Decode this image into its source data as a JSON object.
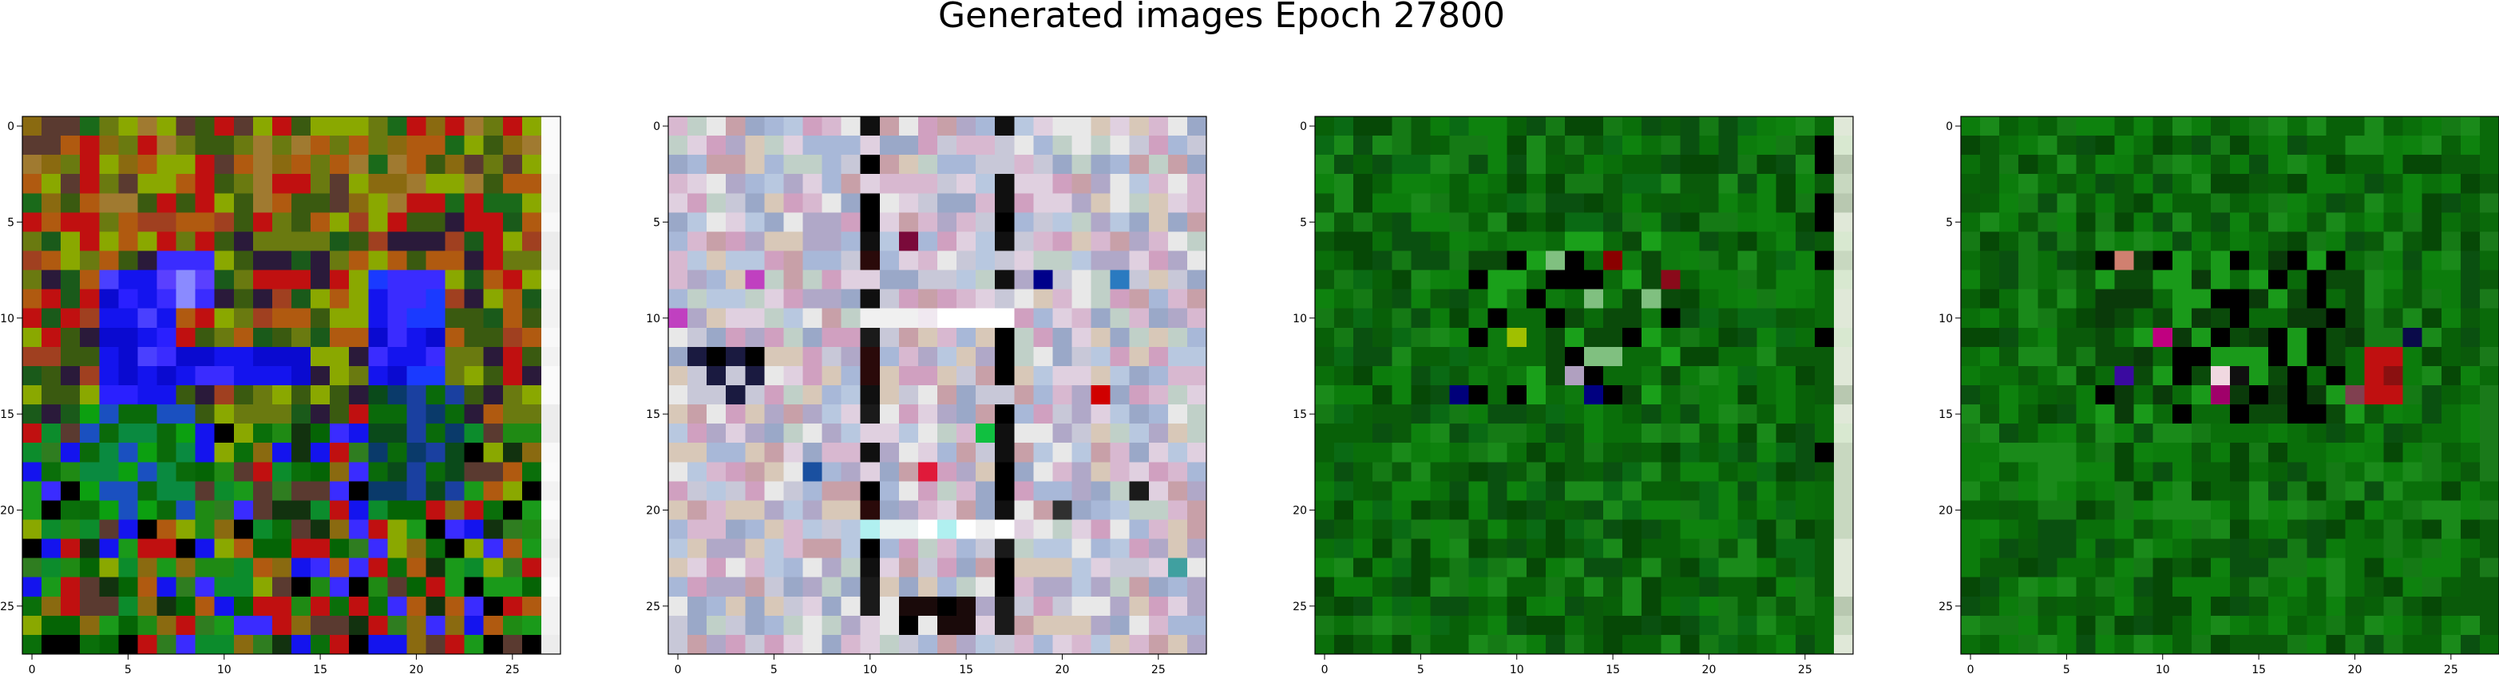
{
  "title": "Generated images Epoch 27800",
  "chart_data": [
    {
      "type": "heatmap",
      "subtype": "rgb-image",
      "grid": [
        28,
        28
      ],
      "xlim": [
        -0.5,
        27.5
      ],
      "ylim": [
        27.5,
        -0.5
      ],
      "x_ticks": [
        0,
        5,
        10,
        15,
        20,
        25
      ],
      "y_ticks": [
        0,
        5,
        10,
        15,
        20,
        25
      ],
      "grid_lines": false,
      "palette": [
        "#0a6f0a",
        "#1f8a14",
        "#056405",
        "#2f7d20",
        "#8a6a10",
        "#b05a10",
        "#1414ee",
        "#3a2cff",
        "#000000",
        "#c01010",
        "#8aa800",
        "#5a3a30",
        "#0c8c2c",
        "#1a9a1a",
        "#12320f"
      ],
      "features": [
        {
          "kind": "rect",
          "rows": [
            0,
            7
          ],
          "cols": [
            0,
            27
          ],
          "palette": [
            "#8a6a10",
            "#b05a10",
            "#6a7a10",
            "#3a5a10",
            "#a07a30",
            "#5a3a30",
            "#c01010",
            "#1a6a1a",
            "#8aa800"
          ]
        },
        {
          "kind": "rect",
          "rows": [
            5,
            15
          ],
          "cols": [
            0,
            27
          ],
          "palette": [
            "#b05a10",
            "#6a7a10",
            "#2a1a3a",
            "#c01010",
            "#8aa800",
            "#3a5a10",
            "#a04020",
            "#1a5a1a"
          ]
        },
        {
          "kind": "rect",
          "rows": [
            8,
            14
          ],
          "cols": [
            4,
            7
          ],
          "palette": [
            "#1414ee",
            "#2a20ff",
            "#0a0ad0",
            "#4a40ff"
          ]
        },
        {
          "kind": "rect",
          "rows": [
            12,
            13
          ],
          "cols": [
            7,
            14
          ],
          "palette": [
            "#1414ee",
            "#0a0ad0",
            "#3a2cff"
          ]
        },
        {
          "kind": "rect",
          "rows": [
            8,
            14
          ],
          "cols": [
            18,
            21
          ],
          "palette": [
            "#1414ee",
            "#0a0ad0",
            "#3a2cff",
            "#1a3aff"
          ]
        },
        {
          "kind": "rect",
          "rows": [
            7,
            9
          ],
          "cols": [
            7,
            9
          ],
          "palette": [
            "#3a2cff",
            "#8a8aff",
            "#5a40ff"
          ]
        },
        {
          "kind": "rect",
          "rows": [
            15,
            20
          ],
          "cols": [
            3,
            8
          ],
          "palette": [
            "#0ca010",
            "#0a8a40",
            "#1a50c0",
            "#0a6a0a"
          ]
        },
        {
          "kind": "rect",
          "rows": [
            14,
            19
          ],
          "cols": [
            18,
            22
          ],
          "palette": [
            "#0a4a1a",
            "#1a40a0",
            "#0a6a0a",
            "#0a3a6a"
          ]
        },
        {
          "kind": "col",
          "cols": [
            27,
            27
          ],
          "palette": [
            "#f2f2f2",
            "#f8f8f8",
            "#ececec",
            "#fafafa"
          ]
        },
        {
          "kind": "cell",
          "r": 27,
          "c": 26,
          "palette": [
            "#000000"
          ]
        }
      ]
    },
    {
      "type": "heatmap",
      "subtype": "rgb-image",
      "grid": [
        28,
        28
      ],
      "xlim": [
        -0.5,
        27.5
      ],
      "ylim": [
        27.5,
        -0.5
      ],
      "x_ticks": [
        0,
        5,
        10,
        15,
        20,
        25
      ],
      "y_ticks": [
        0,
        5,
        10,
        15,
        20,
        25
      ],
      "grid_lines": false,
      "palette": [
        "#c8c8d8",
        "#d8b8d0",
        "#a8b8d8",
        "#c0d0c8",
        "#e0d0e0",
        "#b0a8c8",
        "#d0a0c0",
        "#9aa8c8",
        "#e8e8e8",
        "#c8a0a8",
        "#b8c8e0",
        "#d8c8b8"
      ],
      "features": [
        {
          "kind": "col",
          "cols": [
            10,
            10
          ],
          "palette": [
            "#000000",
            "#1a1a1a",
            "#2a0a0a",
            "#e0d0e0",
            "#101010"
          ]
        },
        {
          "kind": "col",
          "cols": [
            17,
            17
          ],
          "palette": [
            "#000000",
            "#1a1a1a",
            "#c8c8d8",
            "#101010"
          ]
        },
        {
          "kind": "rect",
          "rows": [
            10,
            10
          ],
          "cols": [
            10,
            17
          ],
          "palette": [
            "#f0f0f0",
            "#e8e8f0",
            "#ffffff",
            "#f0e8f0"
          ]
        },
        {
          "kind": "rect",
          "rows": [
            21,
            21
          ],
          "cols": [
            10,
            17
          ],
          "palette": [
            "#f0f0f0",
            "#e8f0f0",
            "#b0f0f0",
            "#ffffff"
          ]
        },
        {
          "kind": "rect",
          "rows": [
            12,
            14
          ],
          "cols": [
            1,
            4
          ],
          "palette": [
            "#000000",
            "#1a1a40",
            "#c8c8d8"
          ]
        },
        {
          "kind": "rect",
          "rows": [
            25,
            26
          ],
          "cols": [
            12,
            15
          ],
          "palette": [
            "#000000",
            "#1a0a0a",
            "#e8e8e8"
          ]
        },
        {
          "kind": "cell",
          "r": 8,
          "c": 4,
          "palette": [
            "#c040c0"
          ]
        },
        {
          "kind": "cell",
          "r": 10,
          "c": 0,
          "palette": [
            "#c040c0"
          ]
        },
        {
          "kind": "cell",
          "r": 18,
          "c": 13,
          "palette": [
            "#e01a3a"
          ]
        },
        {
          "kind": "cell",
          "r": 14,
          "c": 22,
          "palette": [
            "#d00000"
          ]
        },
        {
          "kind": "cell",
          "r": 18,
          "c": 7,
          "palette": [
            "#1a50a0"
          ]
        },
        {
          "kind": "cell",
          "r": 8,
          "c": 23,
          "palette": [
            "#2a7ac0"
          ]
        },
        {
          "kind": "cell",
          "r": 8,
          "c": 19,
          "palette": [
            "#00008a"
          ]
        },
        {
          "kind": "cell",
          "r": 23,
          "c": 26,
          "palette": [
            "#40a0a0"
          ]
        },
        {
          "kind": "cell",
          "r": 16,
          "c": 16,
          "palette": [
            "#10c040"
          ]
        },
        {
          "kind": "cell",
          "r": 19,
          "c": 24,
          "palette": [
            "#1a1a1a"
          ]
        },
        {
          "kind": "cell",
          "r": 20,
          "c": 20,
          "palette": [
            "#303030"
          ]
        },
        {
          "kind": "cell",
          "r": 6,
          "c": 12,
          "palette": [
            "#7a0a3a"
          ]
        }
      ]
    },
    {
      "type": "heatmap",
      "subtype": "rgb-image",
      "grid": [
        28,
        28
      ],
      "xlim": [
        -0.5,
        27.5
      ],
      "ylim": [
        27.5,
        -0.5
      ],
      "x_ticks": [
        0,
        5,
        10,
        15,
        20,
        25
      ],
      "y_ticks": [
        0,
        5,
        10,
        15,
        20,
        25
      ],
      "grid_lines": false,
      "palette": [
        "#0a6f0a",
        "#086008",
        "#0c7c0c",
        "#0a5a0a",
        "#157a15",
        "#0a6a14",
        "#0e820e",
        "#0a5010",
        "#1a8a1a",
        "#064806"
      ],
      "features": [
        {
          "kind": "rect",
          "rows": [
            6,
            14
          ],
          "cols": [
            8,
            18
          ],
          "palette": [
            "#0a4a0a",
            "#1aa01a",
            "#000000",
            "#0e7a0e",
            "#80c080",
            "#0a6a0a"
          ]
        },
        {
          "kind": "cell",
          "r": 7,
          "c": 15,
          "palette": [
            "#8a0000"
          ]
        },
        {
          "kind": "cell",
          "r": 8,
          "c": 18,
          "palette": [
            "#8a0a1a"
          ]
        },
        {
          "kind": "cell",
          "r": 14,
          "c": 14,
          "palette": [
            "#000080"
          ]
        },
        {
          "kind": "cell",
          "r": 14,
          "c": 7,
          "palette": [
            "#00007a"
          ]
        },
        {
          "kind": "cell",
          "r": 13,
          "c": 13,
          "palette": [
            "#b0a0c0"
          ]
        },
        {
          "kind": "cell",
          "r": 11,
          "c": 10,
          "palette": [
            "#a0c000"
          ]
        },
        {
          "kind": "col",
          "cols": [
            27,
            27
          ],
          "palette": [
            "#c8d8c0",
            "#d8e8d0",
            "#b8c8b0",
            "#e0e8d8"
          ]
        },
        {
          "kind": "col",
          "cols": [
            26,
            26
          ],
          "palette": [
            "#0a5a0a",
            "#000000",
            "#0a6a0a"
          ]
        }
      ]
    },
    {
      "type": "heatmap",
      "subtype": "rgb-image",
      "grid": [
        28,
        28
      ],
      "xlim": [
        -0.5,
        27.5
      ],
      "ylim": [
        27.5,
        -0.5
      ],
      "x_ticks": [
        0,
        5,
        10,
        15,
        20,
        25
      ],
      "y_ticks": [
        0,
        5,
        10,
        15,
        20,
        25
      ],
      "grid_lines": false,
      "palette": [
        "#0a6f0a",
        "#086008",
        "#0c7c0c",
        "#0a5a0a",
        "#157a15",
        "#0e820e",
        "#064806",
        "#1a8a1a",
        "#0a5010"
      ],
      "features": [
        {
          "kind": "rect",
          "rows": [
            7,
            15
          ],
          "cols": [
            7,
            20
          ],
          "palette": [
            "#0a4a0a",
            "#0a6a0a",
            "#000000",
            "#1a9a1a",
            "#0a3a0a"
          ]
        },
        {
          "kind": "cell",
          "r": 7,
          "c": 8,
          "palette": [
            "#d08070"
          ]
        },
        {
          "kind": "cell",
          "r": 13,
          "c": 13,
          "palette": [
            "#f0d8e0"
          ]
        },
        {
          "kind": "cell",
          "r": 13,
          "c": 14,
          "palette": [
            "#101010"
          ]
        },
        {
          "kind": "cell",
          "r": 11,
          "c": 10,
          "palette": [
            "#c00080"
          ]
        },
        {
          "kind": "cell",
          "r": 14,
          "c": 13,
          "palette": [
            "#a0006a"
          ]
        },
        {
          "kind": "cell",
          "r": 13,
          "c": 8,
          "palette": [
            "#3a0aa0"
          ]
        },
        {
          "kind": "rect",
          "rows": [
            12,
            14
          ],
          "cols": [
            21,
            22
          ],
          "palette": [
            "#a00000",
            "#8a1010",
            "#c01010"
          ]
        },
        {
          "kind": "cell",
          "r": 11,
          "c": 23,
          "palette": [
            "#0a0a4a"
          ]
        },
        {
          "kind": "cell",
          "r": 14,
          "c": 20,
          "palette": [
            "#804050"
          ]
        },
        {
          "kind": "col",
          "cols": [
            27,
            27
          ],
          "palette": [
            "#0a6a0a",
            "#0a5a0a",
            "#1a7a1a"
          ]
        }
      ]
    }
  ]
}
